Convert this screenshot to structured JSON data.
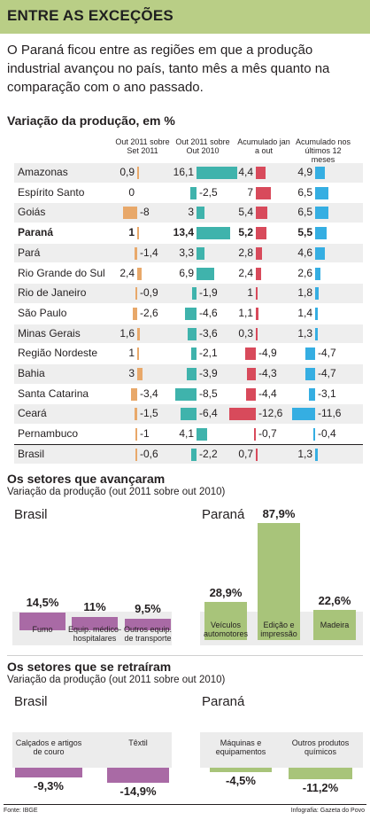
{
  "header": {
    "title": "ENTRE AS EXCEÇÕES"
  },
  "intro": "O Paraná ficou entre as regiões em que a produção industrial avançou no país, tanto mês a mês quanto na comparação com o ano passado.",
  "table": {
    "title": "Variação da produção, em %",
    "columns": [
      "Out 2011 sobre Set 2011",
      "Out 2011 sobre Out 2010",
      "Acumulado jan a out",
      "Acumulado nos últimos 12 meses"
    ],
    "rows": [
      {
        "name": "Amazonas",
        "values": [
          "0,9",
          "16,1",
          "4,4",
          "4,9"
        ],
        "bold": false
      },
      {
        "name": "Espírito Santo",
        "values": [
          "0",
          "-2,5",
          "7",
          "6,5"
        ],
        "bold": false
      },
      {
        "name": "Goiás",
        "values": [
          "-8",
          "3",
          "5,4",
          "6,5"
        ],
        "bold": false
      },
      {
        "name": "Paraná",
        "values": [
          "1",
          "13,4",
          "5,2",
          "5,5"
        ],
        "bold": true
      },
      {
        "name": "Pará",
        "values": [
          "-1,4",
          "3,3",
          "2,8",
          "4,6"
        ],
        "bold": false
      },
      {
        "name": "Rio Grande do Sul",
        "values": [
          "2,4",
          "6,9",
          "2,4",
          "2,6"
        ],
        "bold": false
      },
      {
        "name": "Rio de Janeiro",
        "values": [
          "-0,9",
          "-1,9",
          "1",
          "1,8"
        ],
        "bold": false
      },
      {
        "name": "São Paulo",
        "values": [
          "-2,6",
          "-4,6",
          "1,1",
          "1,4"
        ],
        "bold": false
      },
      {
        "name": "Minas Gerais",
        "values": [
          "1,6",
          "-3,6",
          "0,3",
          "1,3"
        ],
        "bold": false
      },
      {
        "name": "Região Nordeste",
        "values": [
          "1",
          "-2,1",
          "-4,9",
          "-4,7"
        ],
        "bold": false
      },
      {
        "name": "Bahia",
        "values": [
          "3",
          "-3,9",
          "-4,3",
          "-4,7"
        ],
        "bold": false
      },
      {
        "name": "Santa Catarina",
        "values": [
          "-3,4",
          "-8,5",
          "-4,4",
          "-3,1"
        ],
        "bold": false
      },
      {
        "name": "Ceará",
        "values": [
          "-1,5",
          "-6,4",
          "-12,6",
          "-11,6"
        ],
        "bold": false
      },
      {
        "name": "Pernambuco",
        "values": [
          "-1",
          "4,1",
          "-0,7",
          "-0,4"
        ],
        "bold": false
      },
      {
        "name": "Brasil",
        "values": [
          "-0,6",
          "-2,2",
          "0,7",
          "1,3"
        ],
        "bold": false
      }
    ]
  },
  "advanced": {
    "title": "Os setores que avançaram",
    "subtitle": "Variação da produção (out 2011 sobre out 2010)",
    "brasil_label": "Brasil",
    "parana_label": "Paraná"
  },
  "retracted": {
    "title": "Os setores que se retraíram",
    "subtitle": "Variação da produção (out 2011 sobre out 2010)",
    "brasil_label": "Brasil",
    "parana_label": "Paraná"
  },
  "footer": {
    "source": "Fonte: IBGE",
    "credit": "Infografia: Gazeta do Povo"
  },
  "colors": {
    "header": "#b9ce86",
    "orange": "#e8a86a",
    "teal": "#3fb3ac",
    "red": "#d84a5b",
    "blue": "#35aee2",
    "purple": "#a96aa5",
    "green": "#a8c47a"
  },
  "chart_data": [
    {
      "type": "table",
      "title": "Variação da produção, em %",
      "columns": [
        "Out 2011 sobre Set 2011",
        "Out 2011 sobre Out 2010",
        "Acumulado jan a out",
        "Acumulado nos últimos 12 meses"
      ],
      "categories": [
        "Amazonas",
        "Espírito Santo",
        "Goiás",
        "Paraná",
        "Pará",
        "Rio Grande do Sul",
        "Rio de Janeiro",
        "São Paulo",
        "Minas Gerais",
        "Região Nordeste",
        "Bahia",
        "Santa Catarina",
        "Ceará",
        "Pernambuco",
        "Brasil"
      ],
      "series": [
        {
          "name": "Out 2011 sobre Set 2011",
          "values": [
            0.9,
            0,
            -8,
            1,
            -1.4,
            2.4,
            -0.9,
            -2.6,
            1.6,
            1,
            3,
            -3.4,
            -1.5,
            -1,
            -0.6
          ]
        },
        {
          "name": "Out 2011 sobre Out 2010",
          "values": [
            16.1,
            -2.5,
            3,
            13.4,
            3.3,
            6.9,
            -1.9,
            -4.6,
            -3.6,
            -2.1,
            -3.9,
            -8.5,
            -6.4,
            4.1,
            -2.2
          ]
        },
        {
          "name": "Acumulado jan a out",
          "values": [
            4.4,
            7,
            5.4,
            5.2,
            2.8,
            2.4,
            1,
            1.1,
            0.3,
            -4.9,
            -4.3,
            -4.4,
            -12.6,
            -0.7,
            0.7
          ]
        },
        {
          "name": "Acumulado nos últimos 12 meses",
          "values": [
            4.9,
            6.5,
            6.5,
            5.5,
            4.6,
            2.6,
            1.8,
            1.4,
            1.3,
            -4.7,
            -4.7,
            -3.1,
            -11.6,
            -0.4,
            1.3
          ]
        }
      ]
    },
    {
      "type": "bar",
      "title": "Os setores que avançaram",
      "subtitle": "Variação da produção (out 2011 sobre out 2010)",
      "panel": "Brasil",
      "categories": [
        "Fumo",
        "Equip. médico-hospitalares",
        "Outros equip. de transporte"
      ],
      "values": [
        14.5,
        11,
        9.5
      ],
      "labels": [
        "14,5%",
        "11%",
        "9,5%"
      ]
    },
    {
      "type": "bar",
      "panel": "Paraná",
      "categories": [
        "Veículos automotores",
        "Edição e impressão",
        "Madeira"
      ],
      "values": [
        28.9,
        87.9,
        22.6
      ],
      "labels": [
        "28,9%",
        "87,9%",
        "22,6%"
      ]
    },
    {
      "type": "bar",
      "title": "Os setores que se retraíram",
      "subtitle": "Variação da produção (out 2011 sobre out 2010)",
      "panel": "Brasil",
      "categories": [
        "Calçados e artigos de couro",
        "Têxtil"
      ],
      "values": [
        -9.3,
        -14.9
      ],
      "labels": [
        "-9,3%",
        "-14,9%"
      ]
    },
    {
      "type": "bar",
      "panel": "Paraná",
      "categories": [
        "Máquinas e equipamentos",
        "Outros produtos químicos"
      ],
      "values": [
        -4.5,
        -11.2
      ],
      "labels": [
        "-4,5%",
        "-11,2%"
      ]
    }
  ]
}
